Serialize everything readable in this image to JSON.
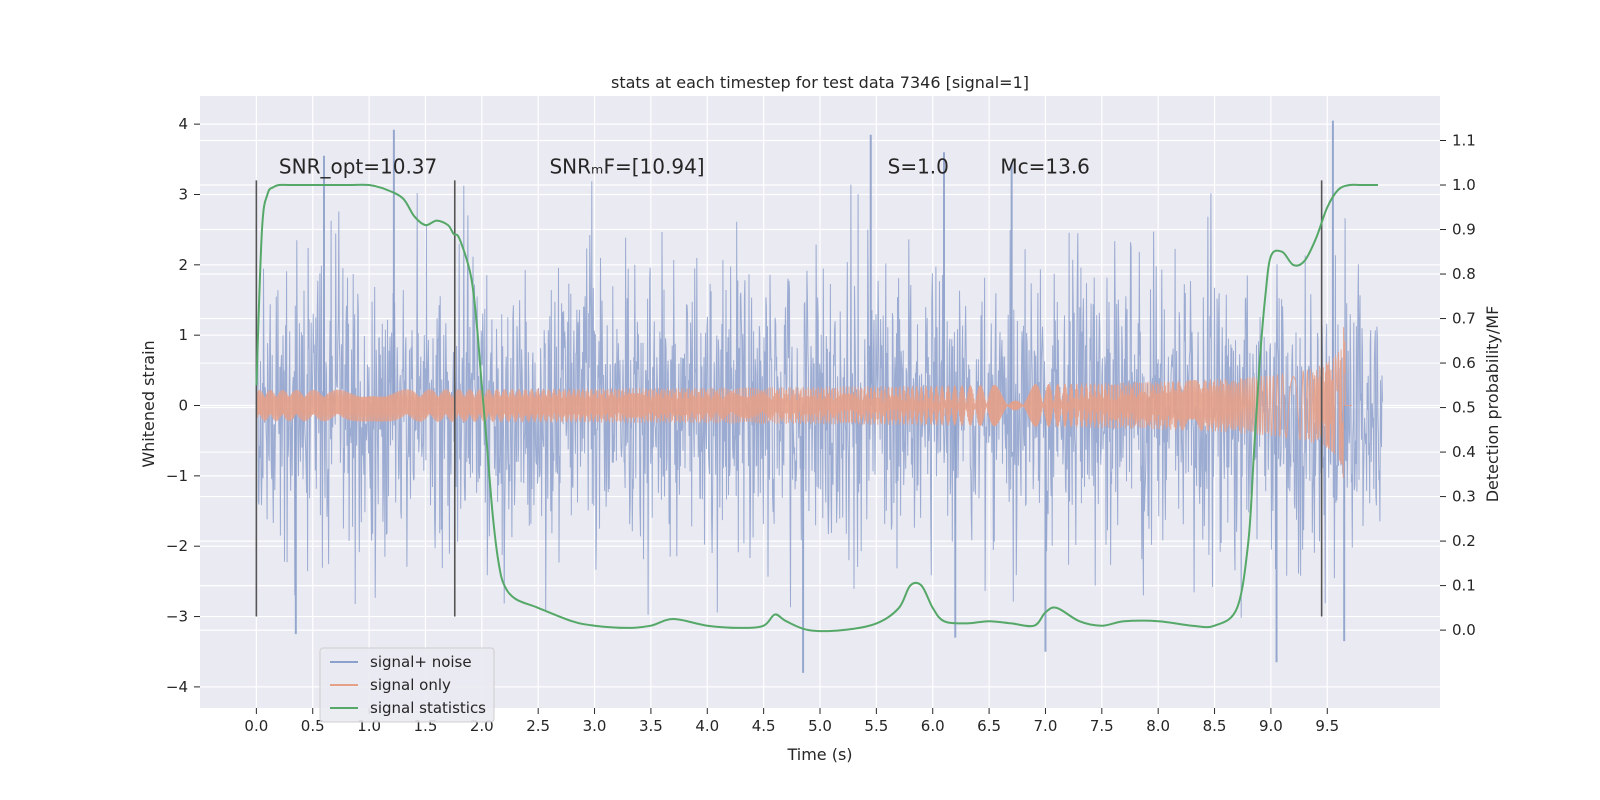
{
  "chart_data": {
    "type": "line",
    "title": "stats at each timestep for test data 7346 [signal=1]",
    "xlabel": "Time (s)",
    "ylabel": "Whitened strain",
    "y2label": "Detection probability/MF",
    "xlim": [
      -0.5,
      10.5
    ],
    "ylim": [
      -4.3,
      4.4
    ],
    "y2lim": [
      -0.175,
      1.2
    ],
    "xticks": [
      0.0,
      0.5,
      1.0,
      1.5,
      2.0,
      2.5,
      3.0,
      3.5,
      4.0,
      4.5,
      5.0,
      5.5,
      6.0,
      6.5,
      7.0,
      7.5,
      8.0,
      8.5,
      9.0,
      9.5
    ],
    "xtick_labels": [
      "0.0",
      "0.5",
      "1.0",
      "1.5",
      "2.0",
      "2.5",
      "3.0",
      "3.5",
      "4.0",
      "4.5",
      "5.0",
      "5.5",
      "6.0",
      "6.5",
      "7.0",
      "7.5",
      "8.0",
      "8.5",
      "9.0",
      "9.5"
    ],
    "yticks": [
      -4,
      -3,
      -2,
      -1,
      0,
      1,
      2,
      3,
      4
    ],
    "ytick_labels": [
      "−4",
      "−3",
      "−2",
      "−1",
      "0",
      "1",
      "2",
      "3",
      "4"
    ],
    "y2ticks": [
      0.0,
      0.1,
      0.2,
      0.3,
      0.4,
      0.5,
      0.6,
      0.7,
      0.8,
      0.9,
      1.0,
      1.1
    ],
    "y2tick_labels": [
      "0.0",
      "0.1",
      "0.2",
      "0.3",
      "0.4",
      "0.5",
      "0.6",
      "0.7",
      "0.8",
      "0.9",
      "1.0",
      "1.1"
    ],
    "grid": true,
    "legend_position": "lower-left",
    "annotations": [
      {
        "text": "SNR_opt=10.37",
        "x": 0.2,
        "y": 3.3
      },
      {
        "text": "SNRₘF=[10.94]",
        "x": 2.6,
        "y": 3.3
      },
      {
        "text": "S=1.0",
        "x": 5.6,
        "y": 3.3
      },
      {
        "text": "Mᴄ=13.6",
        "x": 6.6,
        "y": 3.3
      }
    ],
    "vlines": {
      "x": [
        0.0,
        1.76,
        9.45
      ],
      "y_range": [
        -3.0,
        3.2
      ],
      "color": "#555555"
    },
    "series": [
      {
        "name": "signal+ noise",
        "color": "#8da0cb",
        "description_range": {
          "x_start": 0.0,
          "x_end": 9.99,
          "typical_envelope": [
            -2.2,
            2.2
          ],
          "max": 4.05,
          "min": -3.8
        },
        "spikes": [
          {
            "x": 1.22,
            "y": 3.92
          },
          {
            "x": 0.6,
            "y": 3.55
          },
          {
            "x": 5.45,
            "y": 3.85
          },
          {
            "x": 9.55,
            "y": 4.05
          },
          {
            "x": 6.1,
            "y": 3.6
          },
          {
            "x": 6.7,
            "y": 3.45
          },
          {
            "x": 4.85,
            "y": -3.8
          },
          {
            "x": 9.05,
            "y": -3.65
          },
          {
            "x": 7.0,
            "y": -3.5
          },
          {
            "x": 9.65,
            "y": -3.35
          },
          {
            "x": 0.35,
            "y": -3.25
          },
          {
            "x": 6.2,
            "y": -3.3
          }
        ]
      },
      {
        "name": "signal only",
        "color": "#e5a088",
        "x_start": 0.0,
        "x_end": 9.72,
        "chirp_end": 9.66,
        "peak_amplitude": 1.55
      },
      {
        "name": "signal statistics",
        "color": "#55a868",
        "axis": "y2",
        "x": [
          0.0,
          0.05,
          0.1,
          0.15,
          0.2,
          0.3,
          0.5,
          0.8,
          1.0,
          1.15,
          1.3,
          1.4,
          1.5,
          1.6,
          1.7,
          1.75,
          1.8,
          1.9,
          1.95,
          2.0,
          2.05,
          2.1,
          2.15,
          2.2,
          2.3,
          2.5,
          2.8,
          3.0,
          3.3,
          3.5,
          3.7,
          4.0,
          4.3,
          4.5,
          4.6,
          4.7,
          4.9,
          5.2,
          5.5,
          5.7,
          5.8,
          5.9,
          6.0,
          6.1,
          6.3,
          6.5,
          6.7,
          6.9,
          7.0,
          7.1,
          7.3,
          7.5,
          7.7,
          8.0,
          8.3,
          8.5,
          8.7,
          8.8,
          8.85,
          8.9,
          8.95,
          9.0,
          9.1,
          9.2,
          9.3,
          9.4,
          9.5,
          9.6,
          9.7,
          9.8,
          9.95
        ],
        "y": [
          0.55,
          0.9,
          0.98,
          0.995,
          1.0,
          1.0,
          1.0,
          1.0,
          1.0,
          0.99,
          0.97,
          0.93,
          0.91,
          0.92,
          0.91,
          0.89,
          0.88,
          0.8,
          0.7,
          0.55,
          0.4,
          0.25,
          0.15,
          0.1,
          0.07,
          0.05,
          0.02,
          0.01,
          0.005,
          0.01,
          0.025,
          0.01,
          0.005,
          0.01,
          0.035,
          0.02,
          0.0,
          0.0,
          0.015,
          0.05,
          0.1,
          0.1,
          0.05,
          0.02,
          0.015,
          0.02,
          0.015,
          0.01,
          0.04,
          0.05,
          0.02,
          0.01,
          0.02,
          0.02,
          0.01,
          0.01,
          0.05,
          0.2,
          0.4,
          0.6,
          0.75,
          0.84,
          0.85,
          0.82,
          0.83,
          0.88,
          0.95,
          0.99,
          1.0,
          1.0,
          1.0
        ]
      }
    ]
  }
}
